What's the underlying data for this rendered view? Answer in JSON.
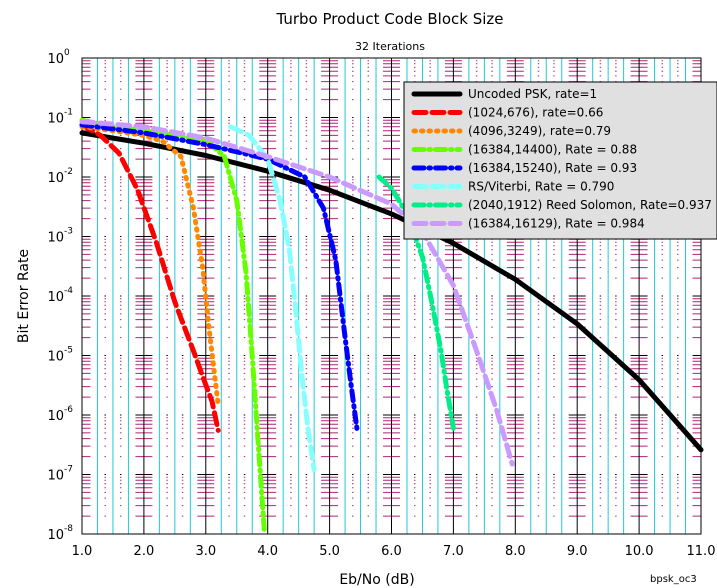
{
  "chart_data": {
    "type": "line",
    "title": "Turbo Product Code Block Size",
    "subtitle": "32 Iterations",
    "xlabel": "Eb/No (dB)",
    "ylabel": "Bit Error Rate",
    "footnote": "bpsk_oc3",
    "xlim": [
      1.0,
      11.0
    ],
    "ylim": [
      1e-08,
      1
    ],
    "yscale": "log",
    "grid": true,
    "legend_position": "top-right",
    "x_ticks": [
      "1.0",
      "2.0",
      "3.0",
      "4.0",
      "5.0",
      "6.0",
      "7.0",
      "8.0",
      "9.0",
      "10.0",
      "11.0"
    ],
    "y_ticks": [
      {
        "base": "10",
        "exp": "0",
        "value": 1
      },
      {
        "base": "10",
        "exp": "-1",
        "value": 0.1
      },
      {
        "base": "10",
        "exp": "-2",
        "value": 0.01
      },
      {
        "base": "10",
        "exp": "-3",
        "value": 0.001
      },
      {
        "base": "10",
        "exp": "-4",
        "value": 0.0001
      },
      {
        "base": "10",
        "exp": "-5",
        "value": 1e-05
      },
      {
        "base": "10",
        "exp": "-6",
        "value": 1e-06
      },
      {
        "base": "10",
        "exp": "-7",
        "value": 1e-07
      },
      {
        "base": "10",
        "exp": "-8",
        "value": 1e-08
      }
    ],
    "series": [
      {
        "name": "Uncoded PSK, rate=1",
        "color": "#000000",
        "style": "solid",
        "x": [
          1.0,
          1.5,
          2.0,
          3.0,
          4.0,
          5.0,
          6.0,
          7.0,
          8.0,
          9.0,
          10.0,
          11.0
        ],
        "y": [
          0.055,
          0.045,
          0.037,
          0.023,
          0.0125,
          0.006,
          0.0024,
          0.00077,
          0.00019,
          3.4e-05,
          3.9e-06,
          2.6e-07
        ]
      },
      {
        "name": "(1024,676), rate=0.66",
        "color": "#ff0000",
        "style": "dash",
        "x": [
          1.0,
          1.3,
          1.6,
          1.9,
          2.2,
          2.5,
          2.8,
          3.0,
          3.1,
          3.2
        ],
        "y": [
          0.075,
          0.05,
          0.025,
          0.006,
          0.0008,
          8e-05,
          1.2e-05,
          3.2e-06,
          1.7e-06,
          5.5e-07
        ]
      },
      {
        "name": "(4096,3249), rate=0.79",
        "color": "#ff8800",
        "style": "dot",
        "x": [
          1.0,
          1.5,
          2.0,
          2.3,
          2.6,
          2.8,
          2.95,
          3.05,
          3.15,
          3.2
        ],
        "y": [
          0.07,
          0.06,
          0.05,
          0.04,
          0.022,
          0.003,
          0.0003,
          3e-05,
          4e-06,
          1.5e-06
        ]
      },
      {
        "name": "(16384,14400), Rate = 0.88",
        "color": "#66ff00",
        "style": "dashdot",
        "x": [
          1.0,
          1.5,
          2.0,
          2.5,
          3.0,
          3.3,
          3.5,
          3.65,
          3.75,
          3.85,
          3.95
        ],
        "y": [
          0.09,
          0.07,
          0.06,
          0.05,
          0.042,
          0.022,
          0.004,
          0.00025,
          1e-05,
          3e-07,
          1e-08
        ]
      },
      {
        "name": "(16384,15240), Rate = 0.93",
        "color": "#0000ff",
        "style": "dashdot",
        "x": [
          1.0,
          2.0,
          3.0,
          4.0,
          4.6,
          4.9,
          5.1,
          5.25,
          5.35,
          5.45
        ],
        "y": [
          0.075,
          0.055,
          0.035,
          0.02,
          0.01,
          0.003,
          0.0004,
          2e-05,
          3e-06,
          5e-07
        ]
      },
      {
        "name": "RS/Viterbi, Rate = 0.790",
        "color": "#88ffff",
        "style": "dash",
        "x": [
          3.4,
          3.7,
          4.0,
          4.2,
          4.35,
          4.45,
          4.55,
          4.65,
          4.75
        ],
        "y": [
          0.07,
          0.05,
          0.02,
          0.004,
          0.0006,
          6e-05,
          5e-06,
          6e-07,
          1.2e-07
        ]
      },
      {
        "name": "(2040,1912) Reed Solomon, Rate=0.937",
        "color": "#00ee88",
        "style": "dashdot",
        "x": [
          5.8,
          6.0,
          6.25,
          6.5,
          6.65,
          6.8,
          6.9,
          7.0
        ],
        "y": [
          0.01,
          0.0065,
          0.0024,
          0.00045,
          8e-05,
          1.2e-05,
          2.5e-06,
          6e-07
        ]
      },
      {
        "name": "(16384,16129), Rate = 0.984",
        "color": "#cc99ff",
        "style": "dash",
        "x": [
          1.0,
          2.0,
          3.0,
          4.0,
          5.0,
          6.0,
          6.5,
          7.0,
          7.4,
          7.7,
          7.95
        ],
        "y": [
          0.085,
          0.07,
          0.045,
          0.022,
          0.01,
          0.0035,
          0.0012,
          0.00015,
          1e-05,
          1.2e-06,
          1.5e-07
        ]
      }
    ]
  }
}
